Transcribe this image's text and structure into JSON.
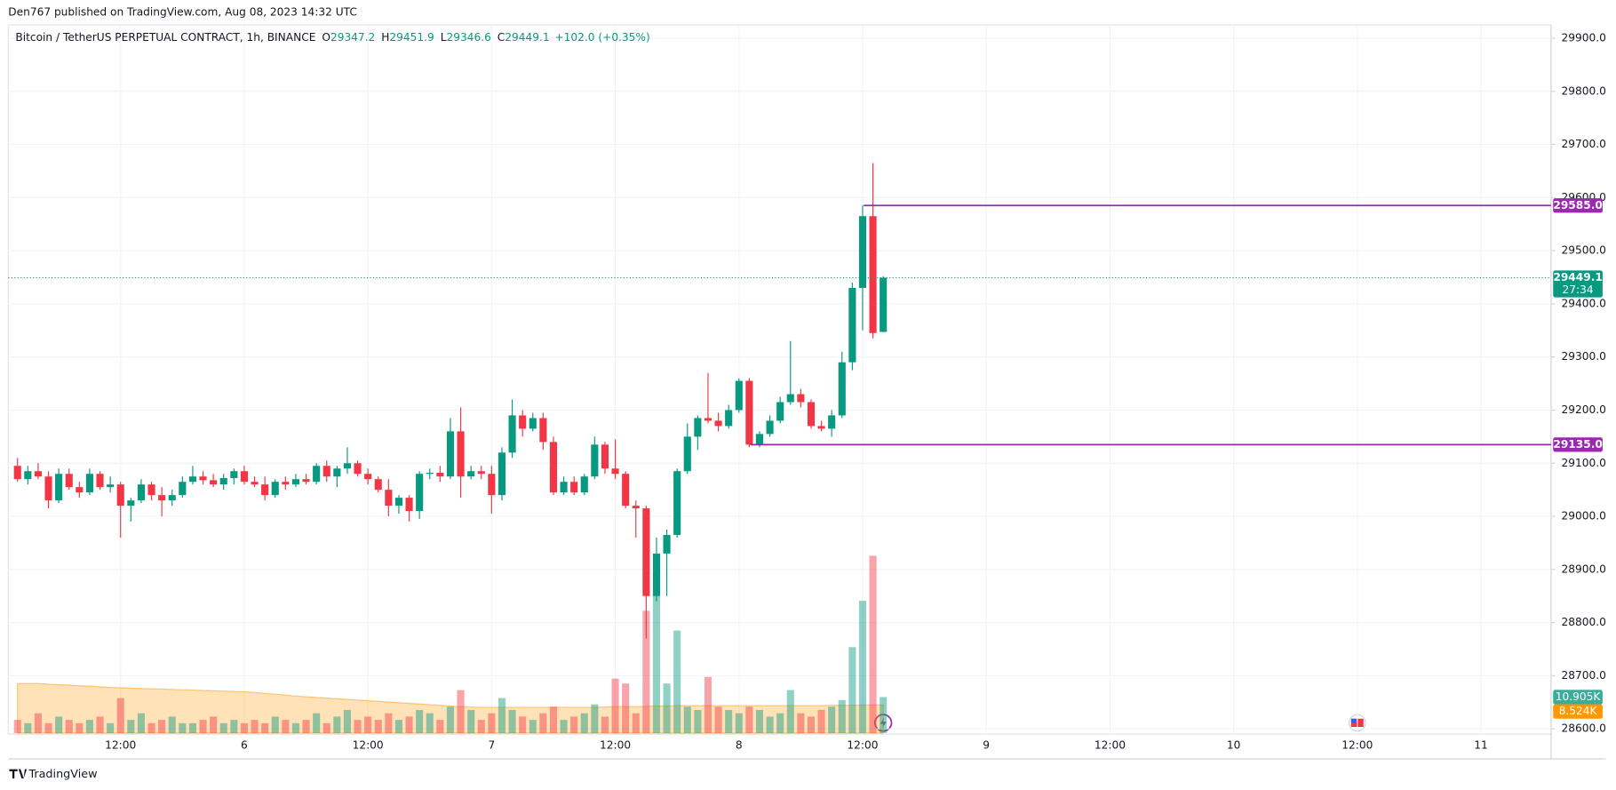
{
  "header": {
    "publisher": "Den767 published on TradingView.com, Aug 08, 2023 14:32 UTC",
    "footer": "TradingView"
  },
  "chart_data": {
    "type": "candlestick",
    "symbol": "Bitcoin / TetherUS PERPETUAL CONTRACT, 1h, BINANCE",
    "ohlc_letters": [
      "O",
      "H",
      "L",
      "C"
    ],
    "change": "+102.0 (+0.35%)",
    "countdown": "27:34",
    "up_color": "#089981",
    "down_color": "#f23645",
    "candles": {
      "open": [
        29095,
        29070,
        29085,
        29075,
        29030,
        29080,
        29055,
        29045,
        29080,
        29055,
        29060,
        29020,
        29030,
        29060,
        29040,
        29030,
        29040,
        29065,
        29075,
        29068,
        29060,
        29072,
        29085,
        29065,
        29060,
        29040,
        29065,
        29060,
        29070,
        29065,
        29095,
        29075,
        29090,
        29100,
        29080,
        29070,
        29050,
        29020,
        29035,
        29010,
        29080,
        29082,
        29075,
        29160,
        29075,
        29085,
        29080,
        29040,
        29120,
        29190,
        29165,
        29185,
        29140,
        29045,
        29065,
        29045,
        29075,
        29135,
        29090,
        29080,
        29020,
        29015,
        28850,
        28930,
        28965,
        29085,
        29150,
        29185,
        29180,
        29170,
        29200,
        29255,
        29135,
        29155,
        29180,
        29215,
        29230,
        29215,
        29170,
        29165,
        29190,
        29290,
        29430,
        29565,
        29347.2
      ],
      "high": [
        29110,
        29095,
        29100,
        29085,
        29090,
        29090,
        29065,
        29090,
        29085,
        29075,
        29065,
        29035,
        29070,
        29065,
        29055,
        29050,
        29075,
        29095,
        29085,
        29080,
        29080,
        29090,
        29095,
        29075,
        29075,
        29070,
        29075,
        29080,
        29080,
        29100,
        29105,
        29095,
        29130,
        29105,
        29090,
        29075,
        29070,
        29040,
        29040,
        29085,
        29090,
        29095,
        29185,
        29205,
        29095,
        29095,
        29095,
        29130,
        29220,
        29200,
        29195,
        29195,
        29150,
        29075,
        29075,
        29080,
        29150,
        29140,
        29145,
        29085,
        29030,
        29020,
        28960,
        28975,
        29090,
        29175,
        29190,
        29270,
        29195,
        29210,
        29260,
        29260,
        29160,
        29190,
        29225,
        29330,
        29240,
        29220,
        29180,
        29200,
        29310,
        29440,
        29585,
        29665,
        29451.9
      ],
      "low": [
        29065,
        29060,
        29070,
        29015,
        29025,
        29050,
        29035,
        29040,
        29050,
        29045,
        28960,
        28990,
        29025,
        29030,
        29000,
        29020,
        29035,
        29060,
        29060,
        29055,
        29050,
        29060,
        29060,
        29055,
        29030,
        29035,
        29050,
        29055,
        29060,
        29060,
        29065,
        29055,
        29080,
        29075,
        29060,
        29045,
        29000,
        29005,
        28990,
        28995,
        29070,
        29065,
        29070,
        29035,
        29070,
        29070,
        29005,
        29030,
        29110,
        29150,
        29160,
        29125,
        29040,
        29040,
        29040,
        29040,
        29070,
        29080,
        29070,
        29015,
        28960,
        28770,
        28840,
        28850,
        28960,
        29080,
        29125,
        29175,
        29160,
        29165,
        29195,
        29130,
        29130,
        29150,
        29175,
        29210,
        29205,
        29165,
        29160,
        29150,
        29185,
        29275,
        29350,
        29335,
        29346.6
      ],
      "close": [
        29070,
        29085,
        29075,
        29030,
        29080,
        29055,
        29045,
        29080,
        29055,
        29060,
        29020,
        29030,
        29060,
        29040,
        29030,
        29040,
        29065,
        29075,
        29068,
        29060,
        29072,
        29085,
        29065,
        29060,
        29040,
        29065,
        29060,
        29070,
        29065,
        29095,
        29075,
        29090,
        29100,
        29080,
        29070,
        29050,
        29020,
        29035,
        29010,
        29080,
        29082,
        29075,
        29160,
        29075,
        29085,
        29080,
        29040,
        29120,
        29190,
        29165,
        29185,
        29140,
        29045,
        29065,
        29045,
        29075,
        29135,
        29090,
        29080,
        29020,
        29015,
        28850,
        28930,
        28965,
        29085,
        29150,
        29185,
        29180,
        29170,
        29200,
        29255,
        29135,
        29155,
        29180,
        29215,
        29230,
        29215,
        29170,
        29165,
        29190,
        29290,
        29430,
        29565,
        29345,
        29449.1
      ]
    },
    "volume": [
      4,
      3,
      6,
      3,
      5,
      4,
      3,
      4,
      5,
      3,
      10.6,
      4,
      6,
      3,
      4,
      5,
      3,
      3,
      4,
      5,
      3,
      4,
      3,
      4,
      3,
      5,
      4,
      3,
      4,
      6,
      3,
      5,
      7,
      4,
      5,
      4,
      6,
      4,
      5,
      7,
      6,
      4,
      8,
      13,
      7,
      4,
      6,
      10.6,
      7,
      5,
      4,
      6,
      8,
      4,
      5,
      6,
      8.7,
      5,
      16.5,
      15,
      6,
      37,
      42,
      15,
      31,
      8,
      7,
      17,
      8,
      7,
      6,
      8,
      7,
      5,
      6,
      13,
      6,
      5,
      7,
      8,
      10,
      26,
      40,
      53.6,
      10.905
    ],
    "volume_ma": [
      15,
      15,
      15,
      14.8,
      14.6,
      14.5,
      14.3,
      14.2,
      14,
      13.8,
      13.7,
      13.6,
      13.5,
      13.4,
      13.3,
      13.2,
      13.1,
      13,
      12.9,
      12.8,
      12.7,
      12.6,
      12.5,
      12.3,
      12,
      11.8,
      11.5,
      11.2,
      11,
      10.8,
      10.6,
      10.4,
      10.2,
      10,
      9.8,
      9.6,
      9.4,
      9.2,
      9,
      8.8,
      8.6,
      8.4,
      8.2,
      8,
      7.9,
      7.8,
      7.8,
      7.8,
      7.8,
      7.8,
      7.8,
      7.8,
      7.8,
      7.8,
      7.8,
      7.8,
      7.8,
      7.9,
      8,
      8,
      8,
      8.1,
      8.2,
      8.2,
      8.3,
      8.3,
      8.3,
      8.3,
      8.3,
      8.3,
      8.3,
      8.3,
      8.3,
      8.3,
      8.3,
      8.3,
      8.3,
      8.3,
      8.3,
      8.4,
      8.4,
      8.4,
      8.5,
      8.5,
      8.524
    ],
    "volume_label": "10.905K",
    "volume_ma_label": "8.524K",
    "levels": [
      {
        "value": 29585,
        "label": "29585.0"
      },
      {
        "value": 29135,
        "label": "29135.0"
      }
    ],
    "level_color": "#9c27b0",
    "x_labels": [
      "12:00",
      "6",
      "12:00",
      "7",
      "12:00",
      "8",
      "12:00",
      "9",
      "12:00",
      "10",
      "12:00",
      "11"
    ],
    "ylim": [
      28590,
      29925
    ],
    "yticks": [
      {
        "value": 28600,
        "label": "28600.0"
      },
      {
        "value": 28700,
        "label": "28700.0"
      },
      {
        "value": 28800,
        "label": "28800.0"
      },
      {
        "value": 28900,
        "label": "28900.0"
      },
      {
        "value": 29000,
        "label": "29000.0"
      },
      {
        "value": 29100,
        "label": "29100.0"
      },
      {
        "value": 29200,
        "label": "29200.0"
      },
      {
        "value": 29300,
        "label": "29300.0"
      },
      {
        "value": 29400,
        "label": "29400.0"
      },
      {
        "value": 29500,
        "label": "29500.0"
      },
      {
        "value": 29600,
        "label": "29600.0"
      },
      {
        "value": 29700,
        "label": "29700.0"
      },
      {
        "value": 29800,
        "label": "29800.0"
      },
      {
        "value": 29900,
        "label": "29900.0"
      }
    ],
    "grid": true
  }
}
